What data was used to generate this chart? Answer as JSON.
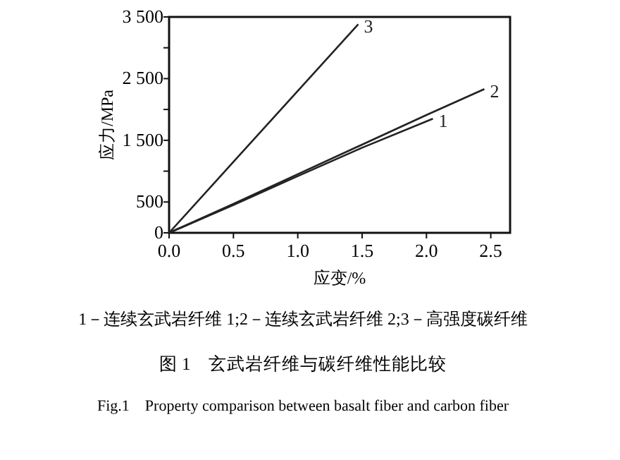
{
  "chart_data": {
    "type": "line",
    "xlabel": "应变/%",
    "ylabel": "应力/MPa",
    "series": [
      {
        "name": "1",
        "color": "#222222",
        "x": [
          0,
          0.5,
          1.0,
          1.5,
          2.05
        ],
        "values": [
          0,
          450,
          920,
          1380,
          1850
        ]
      },
      {
        "name": "2",
        "color": "#222222",
        "x": [
          0,
          0.5,
          1.0,
          1.5,
          2.0,
          2.45
        ],
        "values": [
          0,
          470,
          950,
          1430,
          1910,
          2330
        ]
      },
      {
        "name": "3",
        "color": "#222222",
        "x": [
          0,
          0.5,
          1.0,
          1.47
        ],
        "values": [
          0,
          1150,
          2300,
          3380
        ]
      }
    ],
    "xlim": [
      0,
      2.65
    ],
    "ylim": [
      0,
      3500
    ],
    "xticks": [
      {
        "value": 0,
        "label": "0.0"
      },
      0.5,
      {
        "value": 1,
        "label": "1.0"
      },
      1.5,
      {
        "value": 2,
        "label": "2.0"
      },
      2.5
    ],
    "yticks": [
      0,
      500,
      {
        "value": 1000,
        "label": null
      },
      {
        "value": 1500,
        "label": "1 500"
      },
      {
        "value": 2000,
        "label": null
      },
      {
        "value": 2500,
        "label": "2 500"
      },
      {
        "value": 3000,
        "label": null
      },
      {
        "value": 3500,
        "label": "3 500"
      }
    ],
    "grid": false,
    "marker": "none",
    "line_style": "solid",
    "annotations": [
      "1－连续玄武岩纤维 1;2－连续玄武岩纤维 2;3－高强度碳纤维",
      "图 1　玄武岩纤维与碳纤维性能比较",
      "Fig.1　Property comparison between basalt fiber and carbon fiber"
    ]
  }
}
